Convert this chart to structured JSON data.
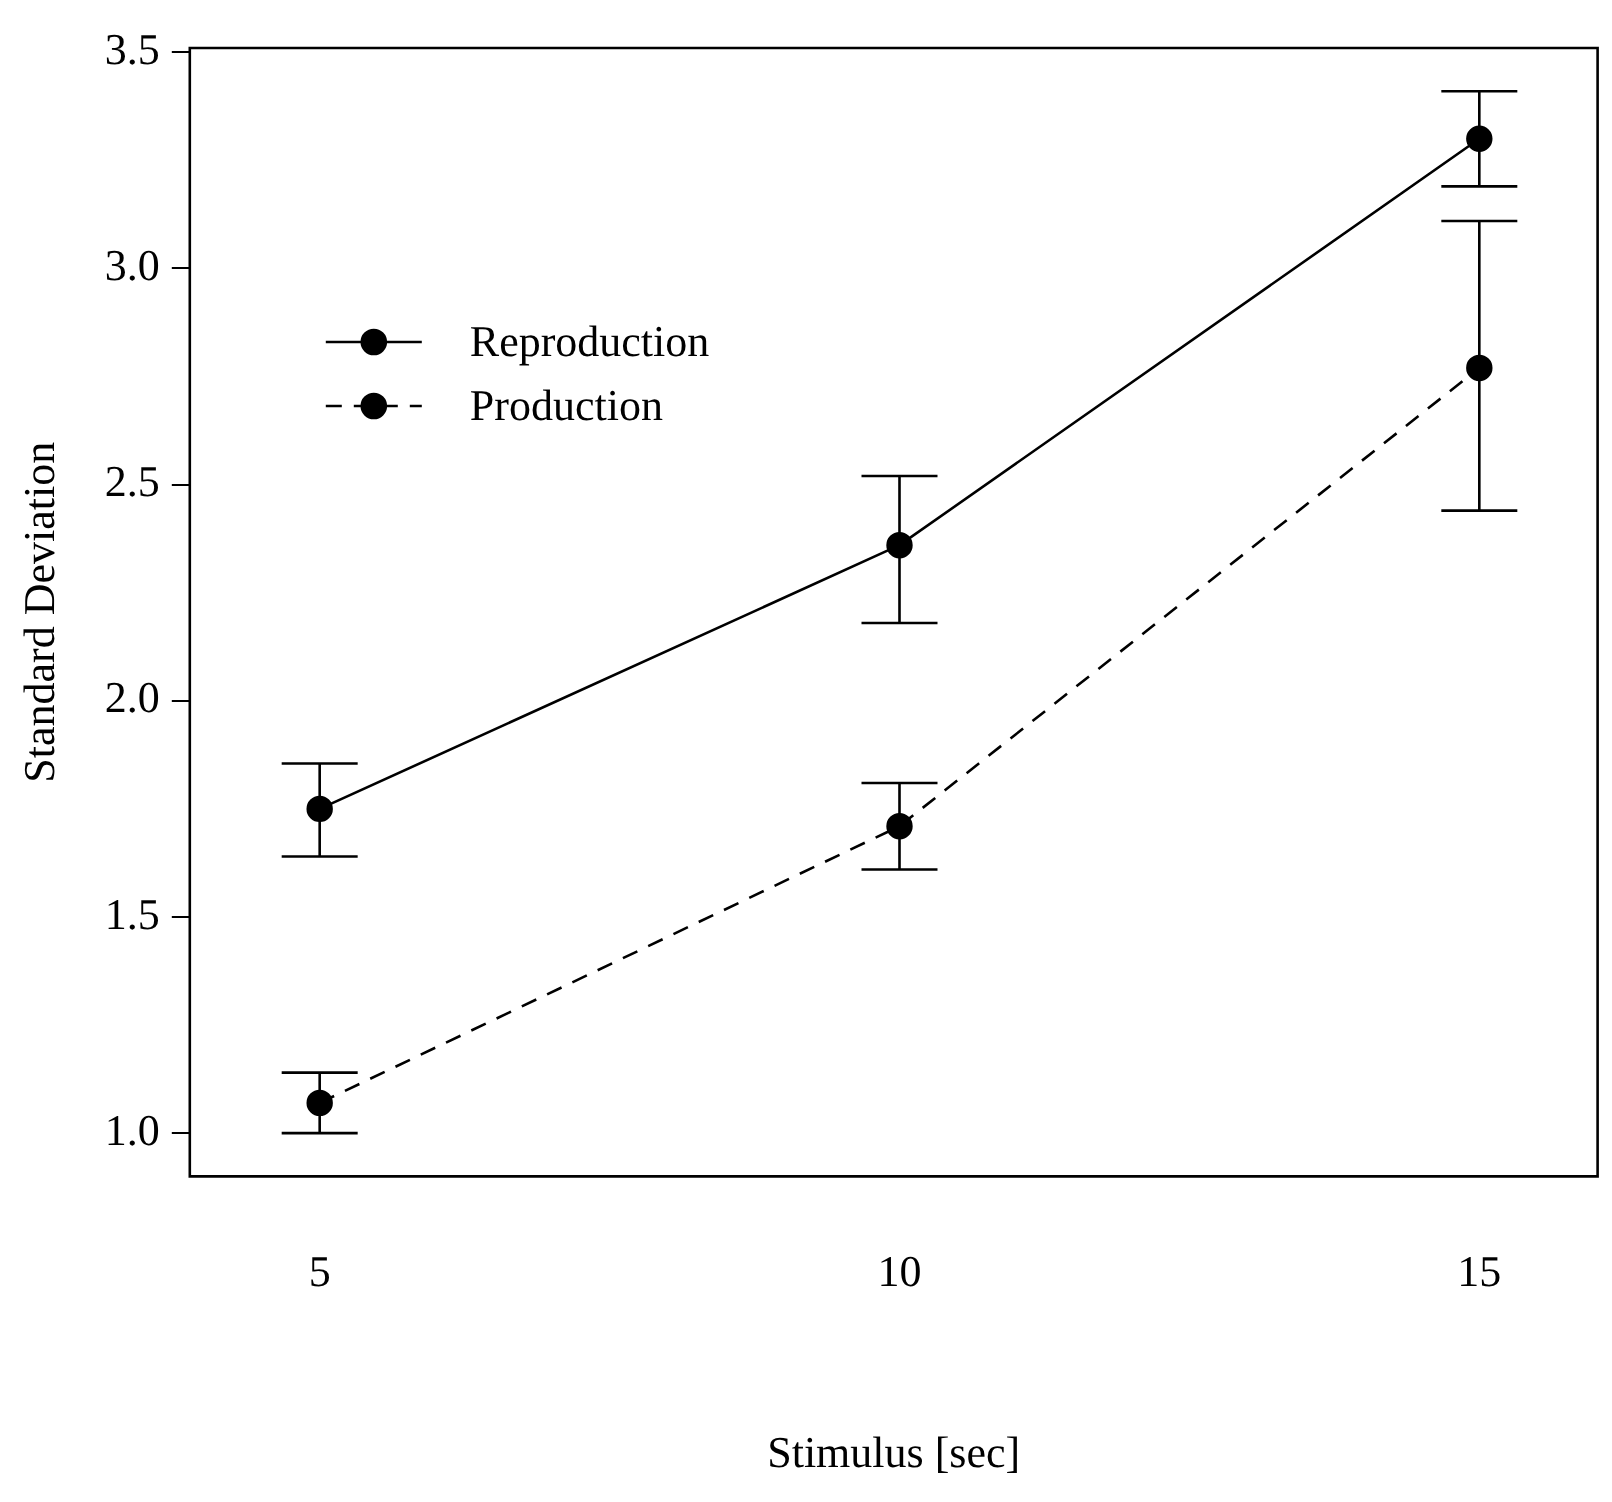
{
  "chart_data": {
    "type": "line",
    "xlabel": "Stimulus [sec]",
    "ylabel": "Standard Deviation",
    "x": [
      5,
      10,
      15
    ],
    "series": [
      {
        "name": "Reproduction",
        "color": "#000000",
        "line_style": "solid",
        "values": [
          1.75,
          2.36,
          3.3
        ],
        "errors": [
          [
            1.64,
            1.855
          ],
          [
            2.18,
            2.52
          ],
          [
            3.19,
            3.41
          ]
        ]
      },
      {
        "name": "Production",
        "color": "#000000",
        "line_style": "dashed",
        "values": [
          1.07,
          1.71,
          2.77
        ],
        "errors": [
          [
            1.0,
            1.14
          ],
          [
            1.61,
            1.81
          ],
          [
            2.44,
            3.11
          ]
        ]
      }
    ],
    "xlim": [
      3.88,
      16.02
    ],
    "xticks": [
      5,
      10,
      15
    ],
    "ylim": [
      0.9,
      3.51
    ],
    "yticks": [
      {
        "value": 1,
        "label": "1.0"
      },
      1.5,
      {
        "value": 2,
        "label": "2.0"
      },
      2.5,
      {
        "value": 3,
        "label": "3.0"
      },
      3.5
    ],
    "grid": false,
    "legend": "top left",
    "marker": "circle"
  }
}
